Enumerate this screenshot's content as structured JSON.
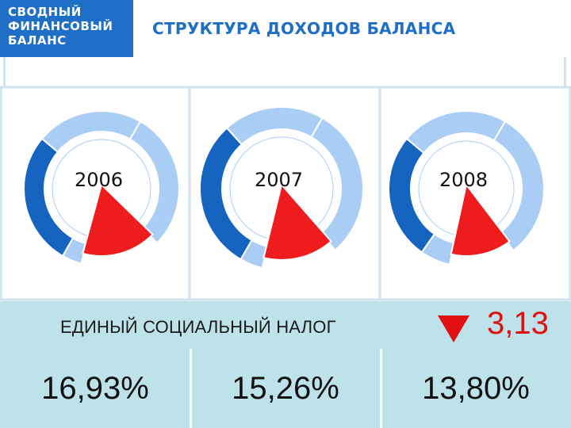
{
  "header": {
    "logo_text": "СВОДНЫЙ\nФИНАНСОВЫЙ\nБАЛАНС",
    "title": "СТРУКТУРА ДОХОДОВ БАЛАНСА"
  },
  "colors": {
    "brand_blue": "#1f6fc6",
    "dark_blue": "#1565c0",
    "light_blue": "#a9cdf5",
    "accent_red": "#ee1c1c",
    "band_bg": "#bde2e9"
  },
  "chart_data": {
    "type": "pie",
    "categories": [
      "2006",
      "2007",
      "2008"
    ],
    "series": [
      {
        "name": "ЕДИНЫЙ СОЦИАЛЬНЫЙ НАЛОГ",
        "values": [
          16.93,
          15.26,
          13.8
        ],
        "labels": [
          "16,93%",
          "15,26%",
          "13,80%"
        ]
      }
    ],
    "change": {
      "direction": "down",
      "value": "3,13"
    }
  },
  "band": {
    "label": "ЕДИНЫЙ СОЦИАЛЬНЫЙ НАЛОГ",
    "icon": "down-triangle-icon"
  }
}
